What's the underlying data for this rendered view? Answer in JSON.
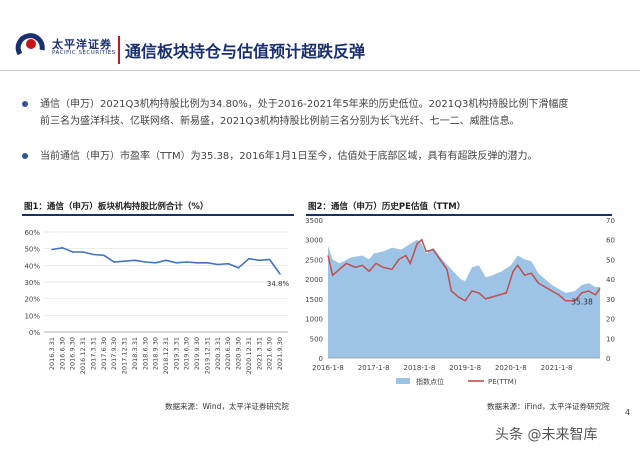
{
  "header": {
    "logo_cn": "太平洋证券",
    "logo_en": "PACIFIC SECURITIES",
    "title": "通信板块持仓与估值预计超跌反弹"
  },
  "bullets": [
    {
      "line1": "通信（申万）2021Q3机构持股比例为34.80%，处于2016-2021年5年来的历史低位。2021Q3机构持股比例下滑幅度",
      "line2": "前三名为盛洋科技、亿联网络、新易盛，2021Q3机构持股比例前三名分别为长飞光纤、七一二、威胜信息。"
    },
    {
      "line1": "当前通信（申万）市盈率（TTM）为35.38，2016年1月1日至今，估值处于底部区域，具有有超跌反弹的潜力。"
    }
  ],
  "figure1": {
    "title": "图1：通信（申万）板块机构持股比例合计（%）",
    "source": "数据来源：Wind，太平洋证券研究院"
  },
  "figure2": {
    "title": "图2：通信（申万）历史PE估值（TTM）",
    "source": "数据来源：iFind，太平洋证券研究院"
  },
  "page_number": "4",
  "watermark": "头条 @未来智库",
  "colors": {
    "brand_navy": "#1a2f6e",
    "brand_red": "#c4161c",
    "line_blue": "#4472c4",
    "area_blue": "#9dc3e6",
    "pe_red": "#c0504d"
  },
  "chart_data": [
    {
      "type": "line",
      "title": "图1：通信（申万）板块机构持股比例合计（%）",
      "x": [
        "2016.3.31",
        "2016.6.30",
        "2016.9.30",
        "2016.12.31",
        "2017.3.31",
        "2017.6.30",
        "2017.9.30",
        "2017.12.31",
        "2018.3.31",
        "2018.6.30",
        "2018.9.30",
        "2018.12.31",
        "2019.3.31",
        "2019.6.30",
        "2019.9.30",
        "2019.12.31",
        "2020.3.31",
        "2020.6.30",
        "2020.9.30",
        "2020.12.31",
        "2021.3.31",
        "2021.6.30",
        "2021.9.30"
      ],
      "series": [
        {
          "values": [
            49.5,
            50.5,
            48,
            48,
            46.5,
            46,
            42,
            42.5,
            43,
            42,
            41.5,
            43,
            41.5,
            42,
            41.5,
            41.5,
            40.5,
            41,
            38.5,
            44,
            43,
            43.5,
            34.8
          ]
        }
      ],
      "ylim": [
        0,
        60
      ],
      "yticks": [
        "0%",
        "10%",
        "20%",
        "30%",
        "40%",
        "50%",
        "60%"
      ],
      "data_label": "34.8%",
      "grid": true
    },
    {
      "type": "area",
      "title": "图2：通信（申万）历史PE估值（TTM）",
      "x_ticks": [
        "2016-1-8",
        "2017-1-8",
        "2018-1-8",
        "2019-1-8",
        "2020-1-8",
        "2021-1-8"
      ],
      "x_range": [
        2016.0,
        2021.95
      ],
      "left_axis": {
        "ylim": [
          0,
          3500
        ],
        "ticks": [
          "0",
          "500",
          "1000",
          "1500",
          "2000",
          "2500",
          "3000",
          "3500"
        ]
      },
      "right_axis": {
        "ylim": [
          0,
          70
        ],
        "ticks": [
          "0",
          "10",
          "20",
          "30",
          "40",
          "50",
          "60",
          "70"
        ]
      },
      "series": [
        {
          "name": "指数点位",
          "axis": "left",
          "points": [
            [
              2016.0,
              2850
            ],
            [
              2016.1,
              2500
            ],
            [
              2016.25,
              2400
            ],
            [
              2016.5,
              2550
            ],
            [
              2016.75,
              2600
            ],
            [
              2016.9,
              2500
            ],
            [
              2017.0,
              2650
            ],
            [
              2017.2,
              2700
            ],
            [
              2017.4,
              2800
            ],
            [
              2017.6,
              2750
            ],
            [
              2017.8,
              2900
            ],
            [
              2017.95,
              3000
            ],
            [
              2018.05,
              2900
            ],
            [
              2018.15,
              2650
            ],
            [
              2018.3,
              2800
            ],
            [
              2018.5,
              2500
            ],
            [
              2018.7,
              2250
            ],
            [
              2018.9,
              2000
            ],
            [
              2019.0,
              1950
            ],
            [
              2019.15,
              2300
            ],
            [
              2019.3,
              2350
            ],
            [
              2019.45,
              2050
            ],
            [
              2019.6,
              2100
            ],
            [
              2019.8,
              2200
            ],
            [
              2020.0,
              2350
            ],
            [
              2020.15,
              2600
            ],
            [
              2020.3,
              2500
            ],
            [
              2020.45,
              2450
            ],
            [
              2020.6,
              2150
            ],
            [
              2020.75,
              2000
            ],
            [
              2020.9,
              1850
            ],
            [
              2021.05,
              1750
            ],
            [
              2021.2,
              1650
            ],
            [
              2021.4,
              1700
            ],
            [
              2021.55,
              1850
            ],
            [
              2021.7,
              1900
            ],
            [
              2021.85,
              1800
            ],
            [
              2021.95,
              1800
            ]
          ]
        },
        {
          "name": "PE(TTM)",
          "axis": "right",
          "points": [
            [
              2016.0,
              52
            ],
            [
              2016.1,
              42
            ],
            [
              2016.25,
              45
            ],
            [
              2016.4,
              48
            ],
            [
              2016.6,
              46
            ],
            [
              2016.75,
              47
            ],
            [
              2016.9,
              44
            ],
            [
              2017.05,
              48
            ],
            [
              2017.2,
              46
            ],
            [
              2017.4,
              45
            ],
            [
              2017.55,
              50
            ],
            [
              2017.7,
              52
            ],
            [
              2017.8,
              48
            ],
            [
              2017.95,
              58
            ],
            [
              2018.05,
              60
            ],
            [
              2018.15,
              54
            ],
            [
              2018.3,
              55
            ],
            [
              2018.45,
              50
            ],
            [
              2018.6,
              45
            ],
            [
              2018.7,
              34
            ],
            [
              2018.85,
              31
            ],
            [
              2019.0,
              29
            ],
            [
              2019.15,
              34
            ],
            [
              2019.3,
              33
            ],
            [
              2019.45,
              30
            ],
            [
              2019.6,
              31
            ],
            [
              2019.75,
              32
            ],
            [
              2019.9,
              33
            ],
            [
              2020.05,
              44
            ],
            [
              2020.15,
              47
            ],
            [
              2020.3,
              42
            ],
            [
              2020.45,
              43
            ],
            [
              2020.6,
              38
            ],
            [
              2020.75,
              36
            ],
            [
              2020.9,
              34
            ],
            [
              2021.05,
              32
            ],
            [
              2021.2,
              29
            ],
            [
              2021.4,
              29
            ],
            [
              2021.55,
              33
            ],
            [
              2021.7,
              34
            ],
            [
              2021.85,
              32
            ],
            [
              2021.95,
              35.38
            ]
          ]
        }
      ],
      "data_label": "35.38",
      "legend": "bottom"
    }
  ]
}
